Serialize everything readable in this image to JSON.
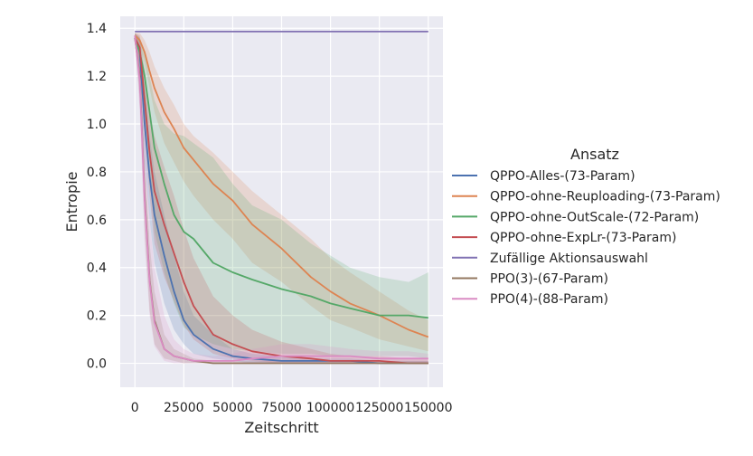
{
  "chart_data": {
    "type": "line",
    "xlabel": "Zeitschritt",
    "ylabel": "Entropie",
    "xlim": [
      -7500,
      157500
    ],
    "ylim": [
      -0.1,
      1.45
    ],
    "xticks": [
      0,
      25000,
      50000,
      75000,
      100000,
      125000,
      150000
    ],
    "xtick_labels": [
      "0",
      "25000",
      "50000",
      "75000",
      "100000",
      "125000",
      "150000"
    ],
    "yticks": [
      0.0,
      0.2,
      0.4,
      0.6,
      0.8,
      1.0,
      1.2,
      1.4
    ],
    "ytick_labels": [
      "0.0",
      "0.2",
      "0.4",
      "0.6",
      "0.8",
      "1.0",
      "1.2",
      "1.4"
    ],
    "grid": true,
    "legend_title": "Ansatz",
    "legend_position": "right",
    "x": [
      0,
      2500,
      5000,
      7500,
      10000,
      15000,
      20000,
      25000,
      30000,
      40000,
      50000,
      60000,
      75000,
      90000,
      100000,
      110000,
      125000,
      140000,
      150000
    ],
    "series": [
      {
        "name": "QPPO-Alles-(73-Param)",
        "color": "#4c72b0",
        "values": [
          1.36,
          1.3,
          1.0,
          0.78,
          0.62,
          0.45,
          0.3,
          0.18,
          0.12,
          0.06,
          0.03,
          0.02,
          0.01,
          0.01,
          0.01,
          0.01,
          0.0,
          0.0,
          0.0
        ],
        "lower": [
          1.34,
          1.22,
          0.85,
          0.6,
          0.42,
          0.25,
          0.14,
          0.08,
          0.04,
          0.02,
          0.01,
          0.0,
          0.0,
          0.0,
          0.0,
          0.0,
          0.0,
          0.0,
          0.0
        ],
        "upper": [
          1.38,
          1.36,
          1.15,
          0.95,
          0.8,
          0.62,
          0.45,
          0.3,
          0.2,
          0.12,
          0.06,
          0.04,
          0.03,
          0.02,
          0.02,
          0.02,
          0.01,
          0.01,
          0.01
        ]
      },
      {
        "name": "QPPO-ohne-Reuploading-(73-Param)",
        "color": "#dd8452",
        "values": [
          1.37,
          1.35,
          1.3,
          1.22,
          1.15,
          1.05,
          0.98,
          0.9,
          0.85,
          0.75,
          0.68,
          0.58,
          0.48,
          0.36,
          0.3,
          0.25,
          0.2,
          0.14,
          0.11
        ],
        "lower": [
          1.36,
          1.32,
          1.26,
          1.15,
          1.05,
          0.92,
          0.84,
          0.76,
          0.7,
          0.6,
          0.52,
          0.42,
          0.34,
          0.24,
          0.18,
          0.15,
          0.1,
          0.07,
          0.05
        ],
        "upper": [
          1.38,
          1.38,
          1.35,
          1.3,
          1.24,
          1.15,
          1.08,
          1.0,
          0.95,
          0.88,
          0.8,
          0.72,
          0.62,
          0.52,
          0.44,
          0.38,
          0.3,
          0.22,
          0.18
        ]
      },
      {
        "name": "QPPO-ohne-OutScale-(72-Param)",
        "color": "#55a868",
        "values": [
          1.36,
          1.3,
          1.2,
          1.05,
          0.9,
          0.75,
          0.62,
          0.55,
          0.52,
          0.42,
          0.38,
          0.35,
          0.31,
          0.28,
          0.25,
          0.23,
          0.2,
          0.2,
          0.19
        ],
        "lower": [
          1.34,
          1.22,
          1.0,
          0.78,
          0.55,
          0.38,
          0.25,
          0.15,
          0.12,
          0.08,
          0.06,
          0.05,
          0.04,
          0.04,
          0.03,
          0.03,
          0.03,
          0.03,
          0.02
        ],
        "upper": [
          1.38,
          1.36,
          1.3,
          1.2,
          1.1,
          1.0,
          0.96,
          0.95,
          0.92,
          0.86,
          0.75,
          0.66,
          0.6,
          0.5,
          0.45,
          0.4,
          0.36,
          0.34,
          0.38
        ]
      },
      {
        "name": "QPPO-ohne-ExpLr-(73-Param)",
        "color": "#c44e52",
        "values": [
          1.36,
          1.32,
          1.1,
          0.88,
          0.72,
          0.58,
          0.46,
          0.34,
          0.24,
          0.12,
          0.08,
          0.05,
          0.03,
          0.02,
          0.01,
          0.01,
          0.01,
          0.0,
          0.0
        ],
        "lower": [
          1.34,
          1.25,
          0.95,
          0.7,
          0.5,
          0.36,
          0.26,
          0.16,
          0.1,
          0.04,
          0.02,
          0.01,
          0.0,
          0.0,
          0.0,
          0.0,
          0.0,
          0.0,
          0.0
        ],
        "upper": [
          1.38,
          1.37,
          1.22,
          1.05,
          0.95,
          0.82,
          0.7,
          0.56,
          0.44,
          0.28,
          0.2,
          0.14,
          0.09,
          0.06,
          0.04,
          0.03,
          0.03,
          0.02,
          0.02
        ]
      },
      {
        "name": "Zufällige Aktionsauswahl",
        "color": "#8172b3",
        "values": [
          1.386,
          1.386,
          1.386,
          1.386,
          1.386,
          1.386,
          1.386,
          1.386,
          1.386,
          1.386,
          1.386,
          1.386,
          1.386,
          1.386,
          1.386,
          1.386,
          1.386,
          1.386,
          1.386
        ],
        "lower": [
          1.386,
          1.386,
          1.386,
          1.386,
          1.386,
          1.386,
          1.386,
          1.386,
          1.386,
          1.386,
          1.386,
          1.386,
          1.386,
          1.386,
          1.386,
          1.386,
          1.386,
          1.386,
          1.386
        ],
        "upper": [
          1.386,
          1.386,
          1.386,
          1.386,
          1.386,
          1.386,
          1.386,
          1.386,
          1.386,
          1.386,
          1.386,
          1.386,
          1.386,
          1.386,
          1.386,
          1.386,
          1.386,
          1.386,
          1.386
        ]
      },
      {
        "name": "PPO(3)-(67-Param)",
        "color": "#937860",
        "values": [
          1.36,
          1.2,
          0.7,
          0.35,
          0.18,
          0.06,
          0.03,
          0.02,
          0.01,
          0.0,
          0.0,
          0.0,
          0.0,
          0.0,
          0.0,
          0.0,
          0.0,
          0.0,
          0.0
        ],
        "lower": [
          1.34,
          1.1,
          0.55,
          0.22,
          0.08,
          0.02,
          0.01,
          0.0,
          0.0,
          0.0,
          0.0,
          0.0,
          0.0,
          0.0,
          0.0,
          0.0,
          0.0,
          0.0,
          0.0
        ],
        "upper": [
          1.38,
          1.3,
          0.85,
          0.5,
          0.3,
          0.12,
          0.06,
          0.04,
          0.02,
          0.01,
          0.01,
          0.01,
          0.01,
          0.01,
          0.01,
          0.01,
          0.01,
          0.01,
          0.01
        ]
      },
      {
        "name": "PPO(4)-(88-Param)",
        "color": "#da8bc3",
        "values": [
          1.37,
          1.18,
          0.68,
          0.34,
          0.17,
          0.06,
          0.03,
          0.02,
          0.01,
          0.01,
          0.01,
          0.02,
          0.03,
          0.03,
          0.03,
          0.03,
          0.02,
          0.02,
          0.02
        ],
        "lower": [
          1.36,
          1.05,
          0.5,
          0.2,
          0.07,
          0.01,
          0.0,
          0.0,
          0.0,
          0.0,
          0.0,
          0.0,
          0.0,
          0.0,
          0.0,
          0.0,
          0.0,
          0.0,
          0.0
        ],
        "upper": [
          1.38,
          1.3,
          0.95,
          0.6,
          0.4,
          0.2,
          0.1,
          0.06,
          0.04,
          0.03,
          0.04,
          0.06,
          0.08,
          0.08,
          0.07,
          0.06,
          0.05,
          0.05,
          0.04
        ]
      }
    ]
  }
}
